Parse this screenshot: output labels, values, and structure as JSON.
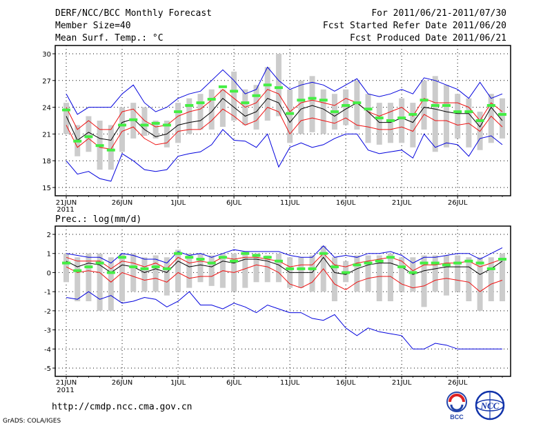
{
  "header": {
    "title": "DERF/NCC/BCC Monthly Forecast",
    "member_size": "Member Size=40",
    "variable": "Mean Surf. Temp.: °C",
    "period": "For 2011/06/21-2011/07/30",
    "refer_date": "Fcst Started Refer Date 2011/06/20",
    "produced_date": "Fcst Produced Date 2011/06/21"
  },
  "footer": {
    "url": "http://cmdp.ncc.cma.gov.cn",
    "grads_credit": "GrADS: COLA/IGES",
    "bcc_logo_text": "BCC",
    "ncc_logo_text": "NCC"
  },
  "colors": {
    "box": "#cccccc",
    "mean": "#000000",
    "spread": "#ee1111",
    "extremes": "#0000dd",
    "marker": "#44ee44",
    "grid": "#000000"
  },
  "chart_data": [
    {
      "type": "ensemble-box",
      "title": "Mean Surf. Temp.: °C",
      "ylim": [
        15,
        30
      ],
      "yticks": [
        15,
        18,
        21,
        24,
        27,
        30
      ],
      "x_tick_labels": [
        "21JUN",
        "26JUN",
        "1JUL",
        "6JUL",
        "11JUL",
        "16JUL",
        "21JUL",
        "26JUL"
      ],
      "x_year_label": "2011",
      "days": 40,
      "series": [
        {
          "name": "box_low",
          "values": [
            21.0,
            18.5,
            19.0,
            17.0,
            17.0,
            19.0,
            20.5,
            20.8,
            20.5,
            19.5,
            20.0,
            21.0,
            21.5,
            21.5,
            21.8,
            22.5,
            22.0,
            21.5,
            22.5,
            23.0,
            20.0,
            21.0,
            21.2,
            21.0,
            21.5,
            22.0,
            21.5,
            20.0,
            19.8,
            20.0,
            20.0,
            19.5,
            21.5,
            19.0,
            19.5,
            20.5,
            19.5,
            19.2,
            20.0,
            20.5
          ]
        },
        {
          "name": "box_high",
          "values": [
            24.5,
            22.0,
            23.0,
            22.5,
            22.0,
            24.0,
            24.5,
            24.0,
            22.5,
            22.5,
            24.5,
            25.0,
            25.5,
            26.0,
            26.0,
            28.0,
            26.0,
            26.5,
            28.5,
            30.0,
            26.0,
            27.0,
            27.5,
            26.0,
            25.5,
            26.0,
            27.0,
            25.5,
            24.5,
            24.5,
            25.0,
            24.5,
            27.0,
            27.5,
            26.5,
            25.5,
            25.0,
            23.5,
            25.5,
            25.0
          ]
        },
        {
          "name": "upper_extreme",
          "values": [
            25.5,
            23.2,
            24.0,
            24.0,
            24.0,
            25.5,
            26.5,
            24.5,
            23.5,
            24.0,
            25.0,
            25.5,
            25.8,
            27.0,
            28.2,
            27.0,
            25.5,
            26.0,
            28.5,
            27.0,
            26.0,
            26.5,
            26.8,
            26.5,
            25.8,
            26.5,
            27.2,
            25.5,
            25.2,
            25.5,
            26.0,
            25.5,
            27.3,
            27.0,
            26.5,
            26.0,
            25.0,
            26.8,
            25.0,
            25.5
          ]
        },
        {
          "name": "upper_spread",
          "values": [
            24.0,
            21.5,
            22.5,
            21.5,
            21.5,
            23.5,
            23.8,
            22.5,
            21.8,
            22.0,
            23.0,
            23.5,
            23.8,
            24.8,
            26.0,
            25.0,
            24.0,
            24.5,
            26.0,
            25.5,
            23.5,
            24.5,
            24.8,
            24.5,
            24.2,
            25.0,
            24.5,
            23.5,
            23.0,
            23.5,
            24.0,
            23.0,
            25.0,
            24.5,
            24.5,
            24.5,
            24.0,
            22.5,
            24.5,
            23.5
          ]
        },
        {
          "name": "mean",
          "values": [
            23.0,
            20.3,
            21.2,
            20.5,
            20.3,
            22.3,
            22.7,
            21.5,
            20.7,
            21.0,
            22.0,
            22.3,
            22.5,
            23.5,
            25.0,
            24.0,
            23.0,
            23.5,
            25.0,
            24.5,
            22.3,
            23.8,
            24.2,
            23.8,
            23.0,
            23.8,
            24.5,
            23.5,
            22.3,
            22.3,
            22.8,
            22.3,
            24.0,
            23.8,
            23.5,
            23.3,
            23.3,
            21.8,
            24.0,
            22.5
          ]
        },
        {
          "name": "lower_spread",
          "values": [
            22.0,
            19.5,
            20.5,
            19.5,
            19.3,
            21.3,
            21.8,
            20.5,
            19.8,
            20.0,
            21.3,
            21.5,
            21.5,
            22.5,
            23.8,
            23.0,
            22.0,
            22.5,
            24.0,
            23.5,
            21.0,
            22.5,
            22.8,
            22.5,
            22.2,
            22.8,
            22.0,
            21.8,
            21.5,
            21.5,
            21.8,
            21.3,
            23.2,
            22.5,
            22.5,
            22.0,
            22.2,
            21.3,
            23.0,
            21.8
          ]
        },
        {
          "name": "lower_extreme",
          "values": [
            18.0,
            16.5,
            16.8,
            16.0,
            15.7,
            18.8,
            18.0,
            17.0,
            16.8,
            17.0,
            18.5,
            18.8,
            19.0,
            19.8,
            21.5,
            20.3,
            20.2,
            19.5,
            21.0,
            17.3,
            19.5,
            20.0,
            19.5,
            19.8,
            20.5,
            21.0,
            21.0,
            19.2,
            18.8,
            19.0,
            19.2,
            18.3,
            21.0,
            19.5,
            20.0,
            19.8,
            18.5,
            20.5,
            20.8,
            19.8
          ]
        },
        {
          "name": "green_marker",
          "values": [
            23.7,
            20.2,
            20.7,
            19.7,
            19.2,
            22.0,
            22.6,
            22.0,
            22.2,
            22.0,
            23.5,
            24.2,
            24.5,
            24.9,
            26.3,
            25.8,
            24.5,
            25.3,
            26.5,
            26.2,
            23.3,
            24.8,
            25.0,
            24.8,
            23.5,
            24.2,
            24.5,
            23.8,
            22.8,
            22.5,
            22.8,
            23.2,
            24.8,
            24.2,
            24.2,
            23.5,
            23.5,
            22.5,
            24.2,
            23.2
          ]
        }
      ]
    },
    {
      "type": "ensemble-box",
      "title": "Prec.: log(mm/d)",
      "ylim": [
        -5,
        2
      ],
      "yticks": [
        -5,
        -4,
        -3,
        -2,
        -1,
        0,
        1,
        2
      ],
      "x_tick_labels": [
        "21JUN",
        "26JUN",
        "1JUL",
        "6JUL",
        "11JUL",
        "16JUL",
        "21JUL",
        "26JUL"
      ],
      "x_year_label": "2011",
      "days": 40,
      "series": [
        {
          "name": "box_low",
          "values": [
            -0.5,
            -1.5,
            -1.5,
            -2.0,
            -2.0,
            -1.5,
            -1.0,
            -1.0,
            -1.0,
            -1.2,
            -1.0,
            -0.8,
            -0.5,
            -0.7,
            -0.8,
            -1.0,
            -0.8,
            -0.5,
            -0.5,
            -0.5,
            -0.8,
            -0.8,
            -1.0,
            -1.0,
            -1.5,
            -0.5,
            -1.0,
            -1.0,
            -1.5,
            -1.5,
            -1.0,
            -1.0,
            -1.8,
            -1.0,
            -1.2,
            -1.0,
            -1.5,
            -2.0,
            -1.5,
            -1.5
          ]
        },
        {
          "name": "box_high",
          "values": [
            1.0,
            0.8,
            1.0,
            1.0,
            0.8,
            1.0,
            1.0,
            0.8,
            0.9,
            0.8,
            1.2,
            1.0,
            1.0,
            0.9,
            1.0,
            1.0,
            1.1,
            1.0,
            0.9,
            1.0,
            0.8,
            0.8,
            0.9,
            1.4,
            0.8,
            0.6,
            0.9,
            0.9,
            0.9,
            1.0,
            0.8,
            0.8,
            0.9,
            0.9,
            0.9,
            0.9,
            0.8,
            0.8,
            0.8,
            1.0
          ]
        },
        {
          "name": "upper_extreme",
          "values": [
            1.0,
            0.9,
            0.8,
            0.8,
            0.5,
            1.0,
            0.9,
            0.7,
            0.7,
            0.5,
            1.1,
            0.9,
            1.0,
            0.8,
            1.0,
            1.2,
            1.1,
            1.1,
            1.1,
            1.1,
            0.9,
            0.8,
            0.8,
            1.4,
            0.8,
            0.9,
            0.8,
            1.0,
            1.0,
            1.1,
            0.9,
            0.5,
            0.8,
            0.8,
            0.9,
            1.0,
            1.0,
            0.7,
            1.0,
            1.3
          ]
        },
        {
          "name": "upper_spread",
          "values": [
            0.8,
            0.6,
            0.6,
            0.6,
            0.2,
            0.6,
            0.5,
            0.3,
            0.5,
            0.2,
            0.8,
            0.5,
            0.6,
            0.5,
            0.8,
            0.7,
            0.8,
            0.8,
            0.7,
            0.6,
            0.3,
            0.4,
            0.4,
            1.0,
            0.4,
            0.3,
            0.5,
            0.6,
            0.7,
            0.8,
            0.6,
            0.1,
            0.4,
            0.4,
            0.5,
            0.5,
            0.6,
            0.3,
            0.5,
            0.7
          ]
        },
        {
          "name": "mean",
          "values": [
            0.6,
            0.3,
            0.5,
            0.4,
            0.0,
            0.4,
            0.3,
            0.0,
            0.2,
            0.0,
            0.6,
            0.3,
            0.4,
            0.3,
            0.6,
            0.5,
            0.7,
            0.7,
            0.6,
            0.4,
            0.0,
            0.0,
            0.0,
            0.8,
            0.0,
            -0.1,
            0.2,
            0.4,
            0.5,
            0.5,
            0.3,
            -0.1,
            0.1,
            0.2,
            0.3,
            0.3,
            0.3,
            -0.1,
            0.2,
            0.6
          ]
        },
        {
          "name": "lower_spread",
          "values": [
            0.3,
            0.0,
            0.1,
            0.0,
            -0.5,
            0.0,
            -0.2,
            -0.4,
            -0.3,
            -0.5,
            0.0,
            -0.3,
            -0.2,
            -0.2,
            0.1,
            0.0,
            0.2,
            0.4,
            0.3,
            0.0,
            -0.6,
            -0.8,
            -0.5,
            0.2,
            -0.6,
            -0.9,
            -0.5,
            -0.3,
            -0.2,
            -0.2,
            -0.6,
            -0.8,
            -0.7,
            -0.4,
            -0.3,
            -0.4,
            -0.5,
            -1.0,
            -0.6,
            -0.4
          ]
        },
        {
          "name": "lower_extreme",
          "values": [
            -1.3,
            -1.4,
            -1.0,
            -1.4,
            -1.2,
            -1.6,
            -1.5,
            -1.3,
            -1.4,
            -1.8,
            -1.5,
            -1.0,
            -1.7,
            -1.7,
            -1.9,
            -1.6,
            -1.8,
            -2.1,
            -1.7,
            -1.9,
            -2.1,
            -2.1,
            -2.4,
            -2.5,
            -2.2,
            -2.9,
            -3.3,
            -2.9,
            -3.1,
            -3.2,
            -3.3,
            -4.0,
            -4.0,
            -3.7,
            -3.8,
            -4.0,
            -4.0,
            -4.0,
            -4.0,
            -4.0
          ]
        },
        {
          "name": "green_marker",
          "values": [
            0.5,
            0.1,
            0.3,
            0.5,
            0.0,
            0.8,
            0.3,
            0.2,
            0.3,
            0.2,
            1.0,
            0.8,
            0.7,
            0.5,
            0.8,
            0.6,
            1.0,
            0.9,
            0.8,
            0.6,
            0.2,
            0.2,
            0.2,
            1.0,
            0.3,
            0.0,
            0.4,
            0.5,
            0.6,
            0.8,
            0.3,
            0.0,
            0.5,
            0.5,
            0.4,
            0.5,
            0.6,
            0.5,
            0.2,
            0.7
          ]
        }
      ]
    }
  ]
}
